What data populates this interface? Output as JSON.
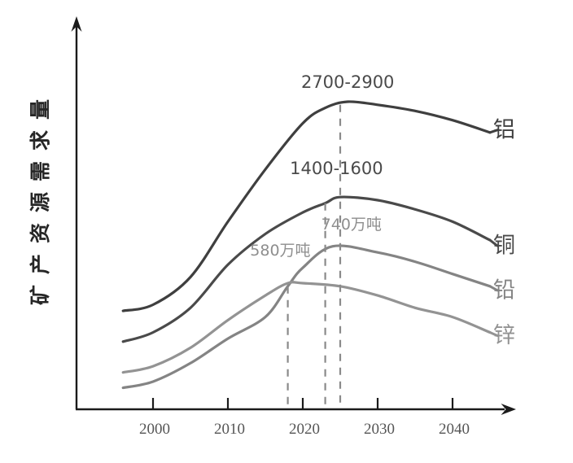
{
  "chart_data": {
    "type": "line",
    "title": "",
    "ylabel": "矿产资源需求量",
    "xlabel": "",
    "x_ticks": [
      "2000",
      "2010",
      "2020",
      "2030",
      "2040"
    ],
    "x_range_years": [
      1996,
      2046
    ],
    "y_axis_note": "no numeric scale shown; values are relative demand index 0-100 estimated from pixel heights",
    "grid": false,
    "axis_color": "#1b1b1b",
    "dashed_line_color": "#8a8a8a",
    "series": [
      {
        "id": "aluminum",
        "name": "铝",
        "color": "#3f3f3f",
        "peak_label": "2700-2900",
        "peak_year_approx": 2025,
        "x": [
          1996,
          2000,
          2005,
          2010,
          2015,
          2020,
          2023,
          2026,
          2030,
          2035,
          2040,
          2045
        ],
        "values": [
          32,
          34,
          43,
          61,
          78,
          93,
          98,
          100,
          99,
          97,
          94,
          90
        ]
      },
      {
        "id": "copper",
        "name": "铜",
        "color": "#4a4a4a",
        "peak_label": "1400-1600",
        "peak_year_approx": 2025,
        "x": [
          1996,
          2000,
          2005,
          2010,
          2015,
          2020,
          2023,
          2025,
          2030,
          2035,
          2040,
          2045
        ],
        "values": [
          22,
          25,
          33,
          47,
          57,
          64,
          67,
          69,
          68,
          65,
          61,
          55
        ]
      },
      {
        "id": "lead",
        "name": "铅",
        "color": "#848484",
        "peak_label": "740万吨",
        "peak_year_approx": 2023,
        "x": [
          1996,
          2000,
          2005,
          2010,
          2015,
          2018,
          2020,
          2024,
          2030,
          2035,
          2040,
          2045
        ],
        "values": [
          7,
          9,
          15,
          23,
          30,
          40,
          46,
          53,
          51,
          48,
          44,
          40
        ]
      },
      {
        "id": "zinc",
        "name": "锌",
        "color": "#939393",
        "peak_label": "580万吨",
        "peak_year_approx": 2018,
        "x": [
          1996,
          2000,
          2005,
          2010,
          2015,
          2018,
          2020,
          2025,
          2030,
          2035,
          2040,
          2045
        ],
        "values": [
          12,
          14,
          20,
          29,
          37,
          41,
          41,
          40,
          37,
          33,
          30,
          25
        ]
      }
    ],
    "dashed_lines": [
      {
        "year": 2018,
        "top_value": 40
      },
      {
        "year": 2023,
        "top_value": 67
      },
      {
        "year": 2025,
        "top_value": 99
      }
    ],
    "annotations": [
      {
        "text": "2700-2900",
        "year": 2026,
        "value": 104.5,
        "color": "#4a4a4a",
        "font_px": 21
      },
      {
        "text": "1400-1600",
        "year": 2024.5,
        "value": 76.5,
        "color": "#4a4a4a",
        "font_px": 21
      },
      {
        "text": "740万吨",
        "year": 2026.5,
        "value": 58.5,
        "color": "#8e8e8e",
        "font_px": 19
      },
      {
        "text": "580万吨",
        "year": 2017,
        "value": 50,
        "color": "#8e8e8e",
        "font_px": 19
      }
    ]
  }
}
